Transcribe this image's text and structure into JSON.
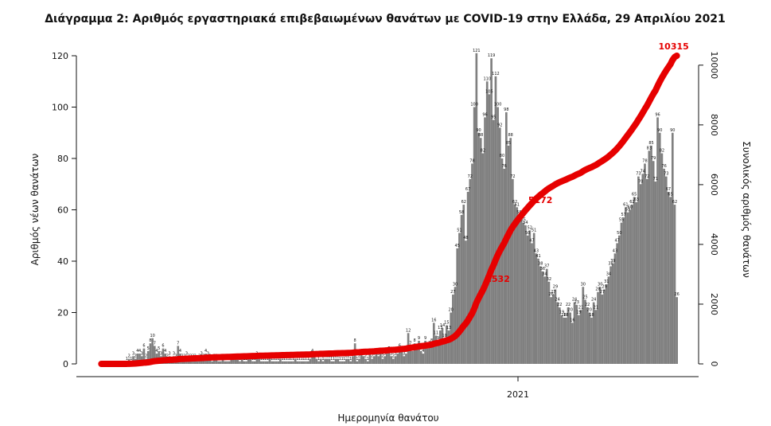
{
  "chart_data": {
    "type": "bar",
    "title": "Διάγραμμα 2: Αριθμός εργαστηριακά επιβεβαιωμένων θανάτων με COVID-19 στην Ελλάδα, 29 Απριλίου 2021",
    "xlabel": "Ημερομηνία θανάτου",
    "ylabel_left": "Αριθμός νέων θανάτων",
    "ylabel_right": "Συνολικός αριθμός θανάτων",
    "x_tick_labels": [
      "2021"
    ],
    "ylim_left": [
      0,
      120
    ],
    "yticks_left": [
      0,
      20,
      40,
      60,
      80,
      100,
      120
    ],
    "ylim_right": [
      0,
      10315
    ],
    "yticks_right": [
      0,
      2000,
      4000,
      6000,
      8000,
      10000
    ],
    "grid": false,
    "series": [
      {
        "kind": "bar",
        "color": "#808080",
        "values": [
          0,
          0,
          0,
          0,
          0,
          0,
          0,
          0,
          0,
          0,
          0,
          0,
          1,
          2,
          1,
          3,
          2,
          4,
          4,
          3,
          6,
          2,
          5,
          8,
          10,
          7,
          4,
          5,
          3,
          6,
          4,
          2,
          3,
          1,
          3,
          2,
          7,
          4,
          2,
          2,
          3,
          2,
          2,
          2,
          2,
          1,
          2,
          3,
          2,
          4,
          3,
          2,
          1,
          2,
          2,
          1,
          1,
          2,
          1,
          1,
          1,
          2,
          2,
          2,
          2,
          1,
          2,
          1,
          1,
          2,
          2,
          1,
          1,
          3,
          2,
          1,
          1,
          1,
          1,
          2,
          1,
          1,
          1,
          1,
          2,
          1,
          1,
          1,
          1,
          1,
          1,
          2,
          1,
          1,
          1,
          1,
          1,
          1,
          2,
          4,
          3,
          2,
          1,
          2,
          1,
          2,
          2,
          2,
          1,
          1,
          2,
          2,
          1,
          1,
          1,
          2,
          2,
          1,
          3,
          8,
          1,
          2,
          4,
          3,
          2,
          1,
          4,
          2,
          3,
          4,
          3,
          4,
          2,
          3,
          4,
          5,
          3,
          2,
          3,
          4,
          6,
          5,
          3,
          4,
          12,
          7,
          5,
          8,
          6,
          9,
          5,
          4,
          9,
          6,
          7,
          8,
          16,
          11,
          9,
          13,
          14,
          10,
          15,
          13,
          20,
          27,
          30,
          45,
          51,
          58,
          62,
          48,
          67,
          72,
          78,
          100,
          121,
          90,
          88,
          82,
          96,
          110,
          105,
          119,
          95,
          112,
          100,
          92,
          80,
          76,
          98,
          85,
          88,
          72,
          62,
          61,
          58,
          56,
          55,
          54,
          50,
          52,
          47,
          51,
          43,
          41,
          38,
          36,
          34,
          37,
          32,
          26,
          27,
          29,
          24,
          22,
          19,
          18,
          18,
          22,
          20,
          16,
          24,
          23,
          19,
          21,
          30,
          25,
          22,
          20,
          18,
          24,
          21,
          28,
          30,
          27,
          29,
          31,
          34,
          38,
          39,
          43,
          47,
          50,
          55,
          57,
          61,
          59,
          60,
          62,
          65,
          63,
          73,
          70,
          74,
          78,
          72,
          83,
          85,
          79,
          71,
          96,
          90,
          82,
          76,
          73,
          67,
          65,
          90,
          62,
          26
        ]
      },
      {
        "kind": "line",
        "color": "#e60000",
        "values_description": "cumulative",
        "point_labels": [
          {
            "value": 2532,
            "label": "2532"
          },
          {
            "value": 5172,
            "label": "5172"
          },
          {
            "value": 10315,
            "label": "10315"
          }
        ]
      }
    ],
    "bar_value_labels_shown": true
  }
}
